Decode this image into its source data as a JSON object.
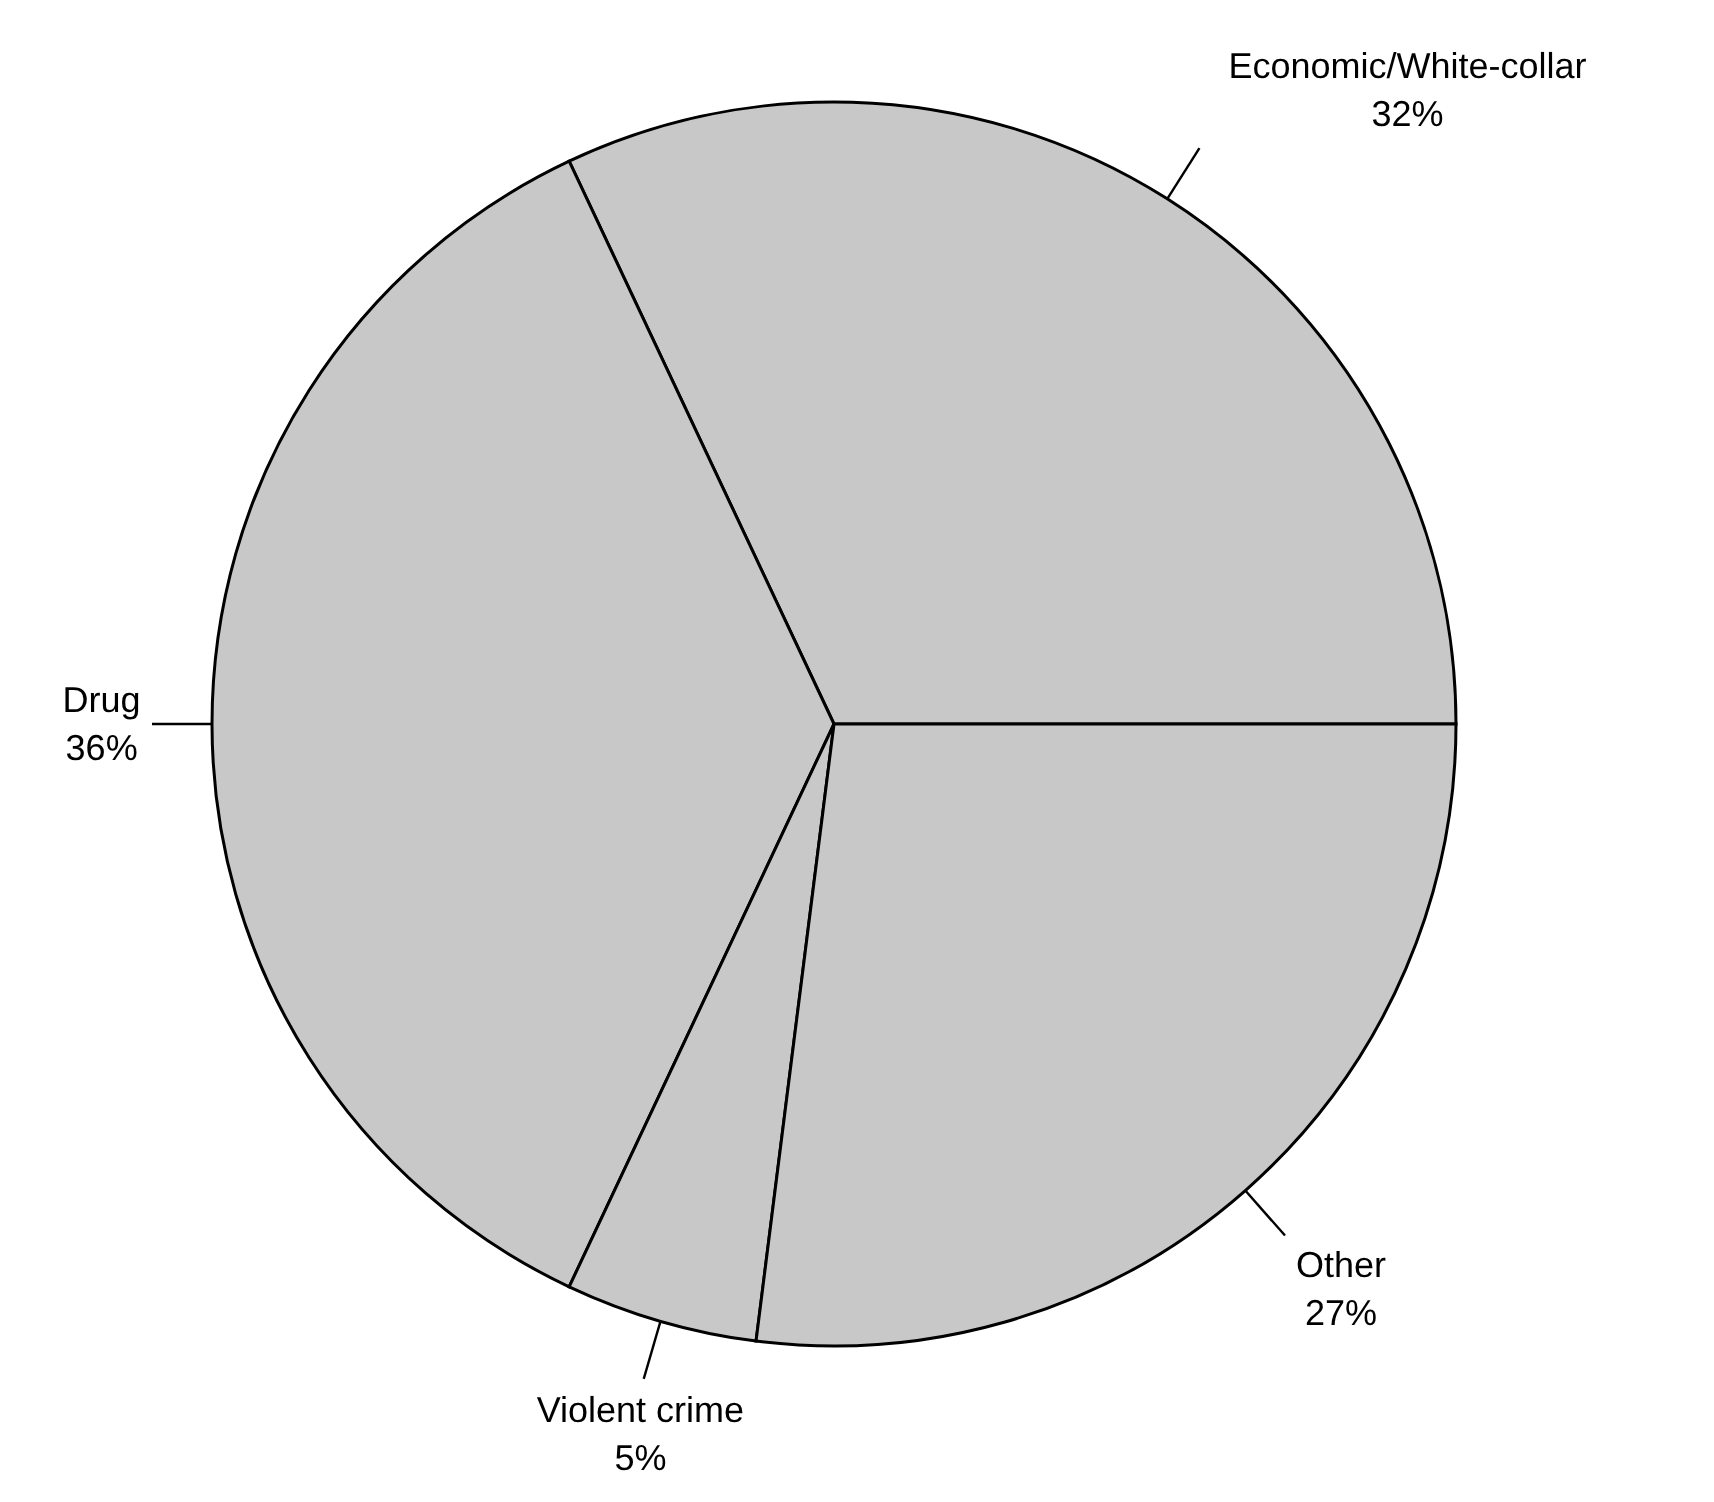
{
  "chart_data": {
    "type": "pie",
    "categories": [
      "Economic/White-collar",
      "Drug",
      "Violent crime",
      "Other"
    ],
    "values": [
      32,
      36,
      5,
      27
    ],
    "colors": [
      "#c8c8c8",
      "#c8c8c8",
      "#c8c8c8",
      "#c8c8c8"
    ],
    "value_labels": [
      "32%",
      "36%",
      "5%",
      "27%"
    ]
  }
}
